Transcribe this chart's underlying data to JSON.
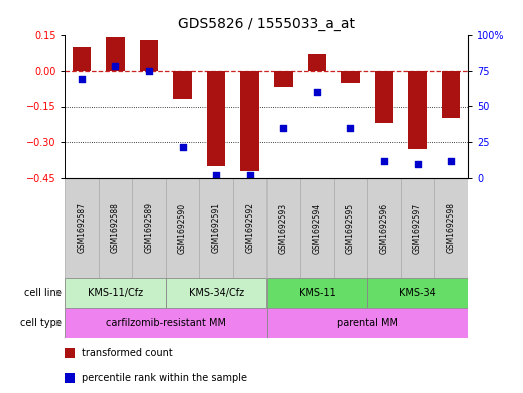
{
  "title": "GDS5826 / 1555033_a_at",
  "samples": [
    "GSM1692587",
    "GSM1692588",
    "GSM1692589",
    "GSM1692590",
    "GSM1692591",
    "GSM1692592",
    "GSM1692593",
    "GSM1692594",
    "GSM1692595",
    "GSM1692596",
    "GSM1692597",
    "GSM1692598"
  ],
  "transformed_count": [
    0.1,
    0.14,
    0.13,
    -0.12,
    -0.4,
    -0.42,
    -0.07,
    0.07,
    -0.05,
    -0.22,
    -0.33,
    -0.2
  ],
  "percentile_rank": [
    69,
    78,
    75,
    22,
    2,
    2,
    35,
    60,
    35,
    12,
    10,
    12
  ],
  "ylim_left": [
    -0.45,
    0.15
  ],
  "ylim_right": [
    0,
    100
  ],
  "yticks_left": [
    0.15,
    0.0,
    -0.15,
    -0.3,
    -0.45
  ],
  "yticks_right": [
    100,
    75,
    50,
    25,
    0
  ],
  "cell_line_groups": [
    {
      "label": "KMS-11/Cfz",
      "start": 0,
      "end": 3
    },
    {
      "label": "KMS-34/Cfz",
      "start": 3,
      "end": 6
    },
    {
      "label": "KMS-11",
      "start": 6,
      "end": 9
    },
    {
      "label": "KMS-34",
      "start": 9,
      "end": 12
    }
  ],
  "cell_line_colors": [
    "#c8f0c8",
    "#c8f0c8",
    "#66dd66",
    "#66dd66"
  ],
  "cell_type_groups": [
    {
      "label": "carfilzomib-resistant MM",
      "start": 0,
      "end": 6
    },
    {
      "label": "parental MM",
      "start": 6,
      "end": 12
    }
  ],
  "cell_type_color": "#ee82ee",
  "sample_box_color": "#d0d0d0",
  "sample_box_edge": "#aaaaaa",
  "bar_color": "#aa1111",
  "dot_color": "#0000cc",
  "hline_color": "#cc2222",
  "grid_color": "black",
  "bg_color": "white",
  "title_fontsize": 10,
  "tick_fontsize": 7,
  "sample_fontsize": 5.5,
  "annot_fontsize": 7,
  "legend_fontsize": 7
}
